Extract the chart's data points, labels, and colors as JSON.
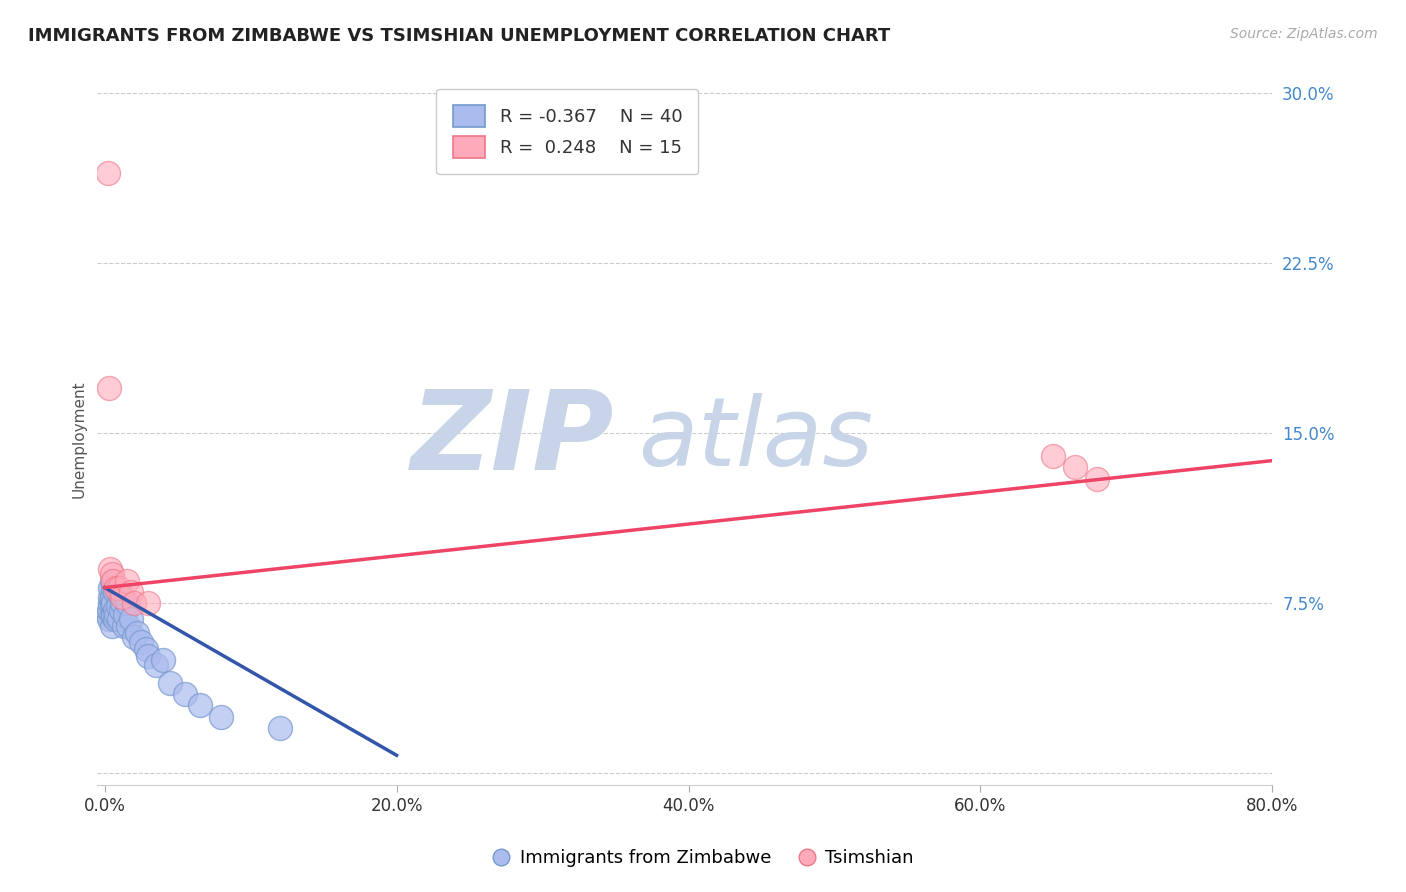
{
  "title": "IMMIGRANTS FROM ZIMBABWE VS TSIMSHIAN UNEMPLOYMENT CORRELATION CHART",
  "source": "Source: ZipAtlas.com",
  "xlabel": "",
  "ylabel": "Unemployment",
  "xlim": [
    -0.005,
    0.8
  ],
  "ylim": [
    -0.005,
    0.3
  ],
  "xticks": [
    0.0,
    0.2,
    0.4,
    0.6,
    0.8
  ],
  "xticklabels": [
    "0.0%",
    "20.0%",
    "40.0%",
    "60.0%",
    "80.0%"
  ],
  "yticks": [
    0.0,
    0.075,
    0.15,
    0.225,
    0.3
  ],
  "yticklabels": [
    "",
    "7.5%",
    "15.0%",
    "22.5%",
    "30.0%"
  ],
  "grid_color": "#cccccc",
  "background_color": "#ffffff",
  "blue_color": "#aabbee",
  "pink_color": "#ffaabb",
  "blue_edge_color": "#7799cc",
  "pink_edge_color": "#ee7788",
  "blue_line_color": "#3355aa",
  "pink_line_color": "#ee4466",
  "title_fontsize": 13,
  "watermark_zip": "ZIP",
  "watermark_atlas": "atlas",
  "watermark_color_zip": "#c8d4e8",
  "watermark_color_atlas": "#c8d4e8",
  "legend_R1": "R = -0.367",
  "legend_N1": "N = 40",
  "legend_R2": "R =  0.248",
  "legend_N2": "N = 15",
  "blue_scatter_x": [
    0.002,
    0.003,
    0.003,
    0.004,
    0.004,
    0.004,
    0.005,
    0.005,
    0.005,
    0.005,
    0.005,
    0.006,
    0.006,
    0.006,
    0.007,
    0.007,
    0.007,
    0.008,
    0.009,
    0.009,
    0.01,
    0.011,
    0.012,
    0.013,
    0.014,
    0.015,
    0.016,
    0.018,
    0.02,
    0.022,
    0.025,
    0.028,
    0.03,
    0.035,
    0.04,
    0.045,
    0.055,
    0.065,
    0.08,
    0.12
  ],
  "blue_scatter_y": [
    0.07,
    0.068,
    0.072,
    0.075,
    0.078,
    0.082,
    0.065,
    0.07,
    0.075,
    0.078,
    0.085,
    0.07,
    0.075,
    0.082,
    0.068,
    0.072,
    0.08,
    0.07,
    0.074,
    0.08,
    0.068,
    0.072,
    0.075,
    0.065,
    0.07,
    0.075,
    0.065,
    0.068,
    0.06,
    0.062,
    0.058,
    0.055,
    0.052,
    0.048,
    0.05,
    0.04,
    0.035,
    0.03,
    0.025,
    0.02
  ],
  "pink_scatter_x": [
    0.002,
    0.003,
    0.004,
    0.005,
    0.006,
    0.008,
    0.01,
    0.012,
    0.015,
    0.018,
    0.02,
    0.03,
    0.65,
    0.665,
    0.68
  ],
  "pink_scatter_y": [
    0.265,
    0.17,
    0.09,
    0.088,
    0.085,
    0.082,
    0.082,
    0.078,
    0.085,
    0.08,
    0.075,
    0.075,
    0.14,
    0.135,
    0.13
  ],
  "blue_trend_x": [
    0.0,
    0.2
  ],
  "blue_trend_y": [
    0.082,
    0.008
  ],
  "pink_trend_x": [
    0.0,
    0.8
  ],
  "pink_trend_y": [
    0.082,
    0.138
  ]
}
